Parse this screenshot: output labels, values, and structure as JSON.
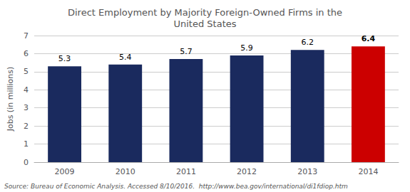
{
  "chart_data": {
    "type": "bar",
    "title": "Direct Employment by Majority Foreign-Owned Firms in the\nUnited States",
    "categories": [
      "2009",
      "2010",
      "2011",
      "2012",
      "2013",
      "2014"
    ],
    "values": [
      5.3,
      5.4,
      5.7,
      5.9,
      6.2,
      6.4
    ],
    "colors": [
      "#1a2a5e",
      "#1a2a5e",
      "#1a2a5e",
      "#1a2a5e",
      "#1a2a5e",
      "#cc0000"
    ],
    "ylabel": "Jobs (in millions)",
    "ylim": [
      0,
      7
    ],
    "yticks": [
      0,
      1,
      2,
      3,
      4,
      5,
      6,
      7
    ],
    "grid": true,
    "data_labels": true,
    "annotation": "Source: Bureau of Economic Analysis. Accessed 8/10/2016.  http://www.bea.gov/international/di1fdiop.htm"
  }
}
